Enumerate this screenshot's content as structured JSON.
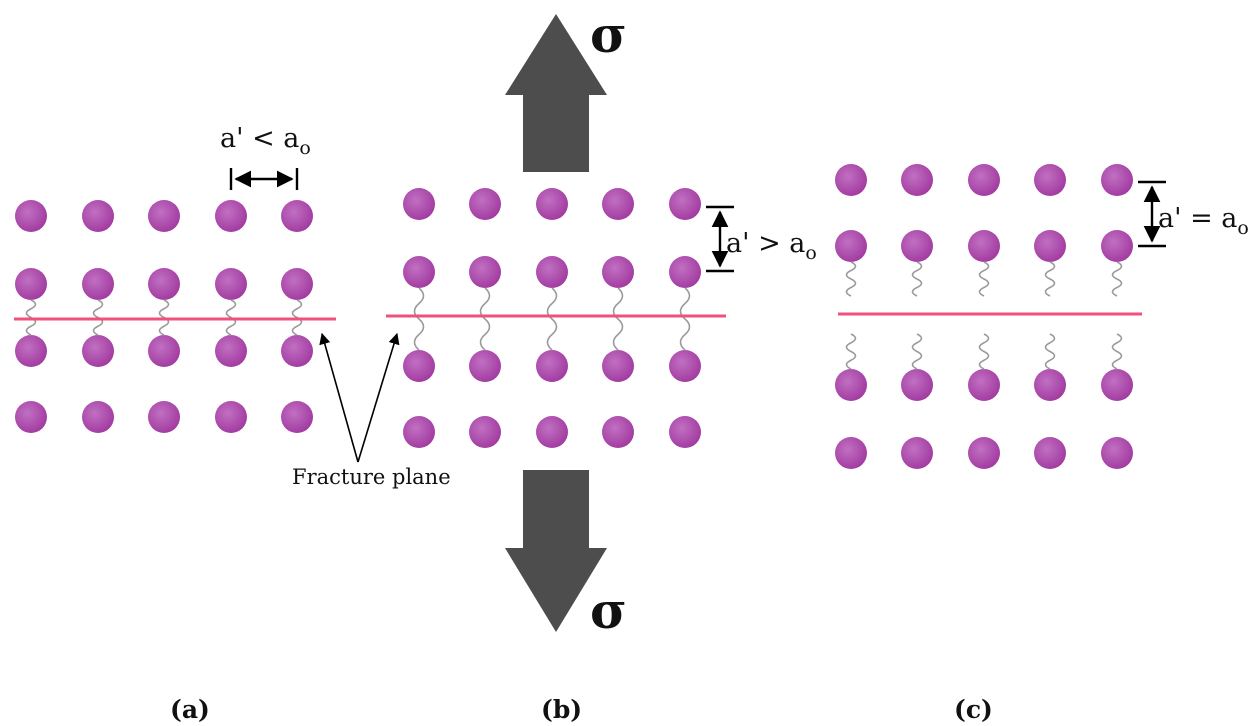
{
  "labels": {
    "stress_symbol": "σ",
    "fracture_plane": "Fracture plane",
    "panel_a_relation": "a' < a",
    "panel_b_relation": "a' > a",
    "panel_c_relation": "a' = a",
    "subscript": "o",
    "panel_a_caption": "(a)",
    "panel_b_caption": "(b)",
    "panel_c_caption": "(c)"
  },
  "colors": {
    "atom": "#a23aa0",
    "atom_highlight": "#c070c2",
    "fracture_plane": "#f0507a",
    "stress_arrow": "#4d4d4d",
    "bond": "#9a9a9a"
  },
  "structure": {
    "atoms_per_row": 5,
    "rows_per_panel": 4
  }
}
